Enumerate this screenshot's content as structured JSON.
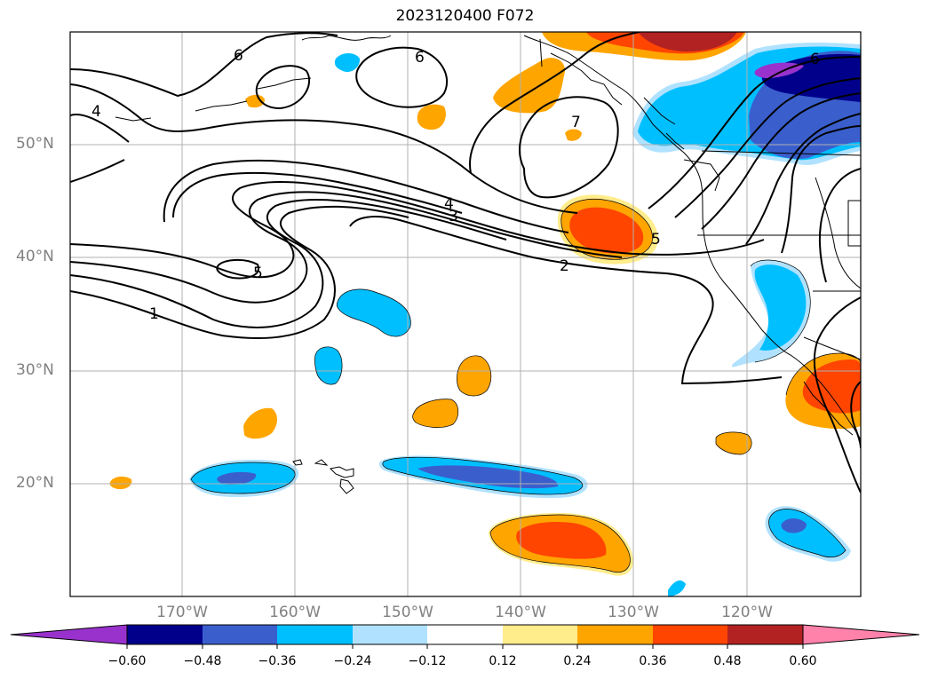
{
  "title": "2023120400 F072",
  "latitude_labels": [
    "50°N",
    "40°N",
    "30°N",
    "20°N"
  ],
  "longitude_labels": [
    "170°W",
    "160°W",
    "150°W",
    "140°W",
    "130°W",
    "120°W"
  ],
  "contour_labels": [
    "6",
    "6",
    "6",
    "4",
    "4",
    "3",
    "5",
    "5",
    "2",
    "1",
    "7"
  ],
  "colorbar": {
    "ticks": [
      "−0.60",
      "−0.48",
      "−0.36",
      "−0.24",
      "−0.12",
      "0.12",
      "0.24",
      "0.36",
      "0.48",
      "0.60"
    ],
    "colors": [
      "#9932cc",
      "#00008b",
      "#3a5fcd",
      "#00bfff",
      "#b0e2ff",
      "#ffffff",
      "#ffec8b",
      "#ffa500",
      "#ff4500",
      "#b22222",
      "#ff82ab"
    ]
  }
}
